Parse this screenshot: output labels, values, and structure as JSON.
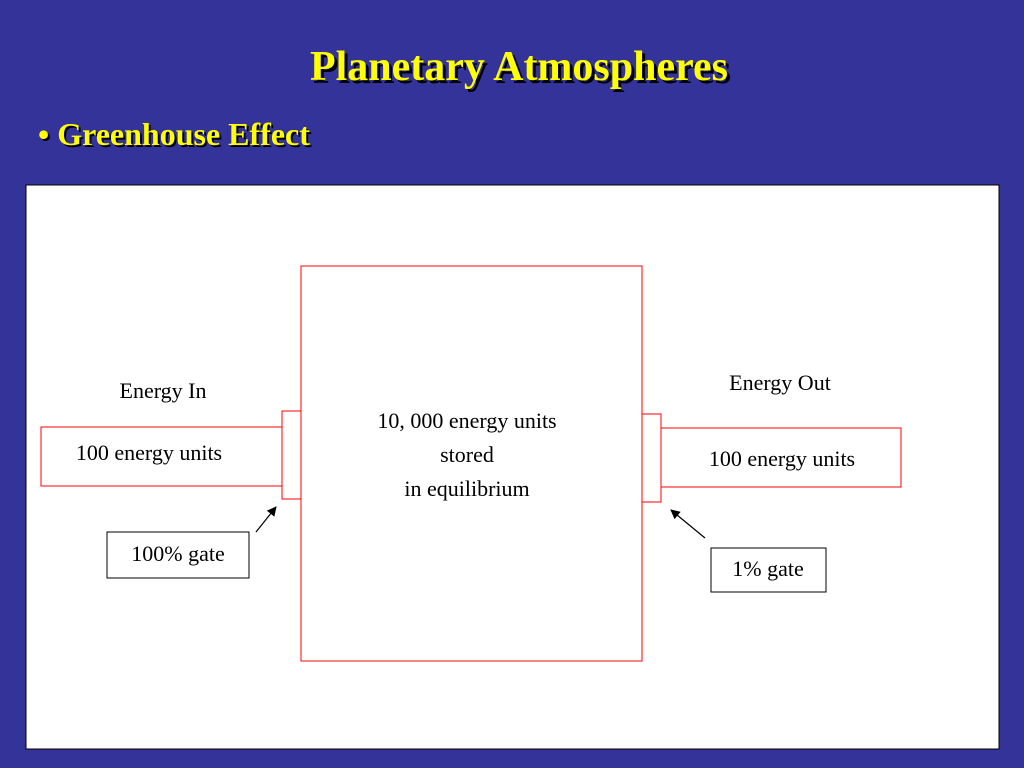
{
  "header": {
    "title": "Planetary Atmospheres",
    "bullet": "• Greenhouse Effect"
  },
  "diagram": {
    "store": {
      "lines": [
        "10, 000 energy units",
        "stored",
        "in equilibrium"
      ]
    },
    "input": {
      "label": "Energy In",
      "amount": "100 energy units",
      "gate": "100% gate"
    },
    "output": {
      "label": "Energy Out",
      "amount": "100 energy units",
      "gate": "1% gate"
    }
  }
}
